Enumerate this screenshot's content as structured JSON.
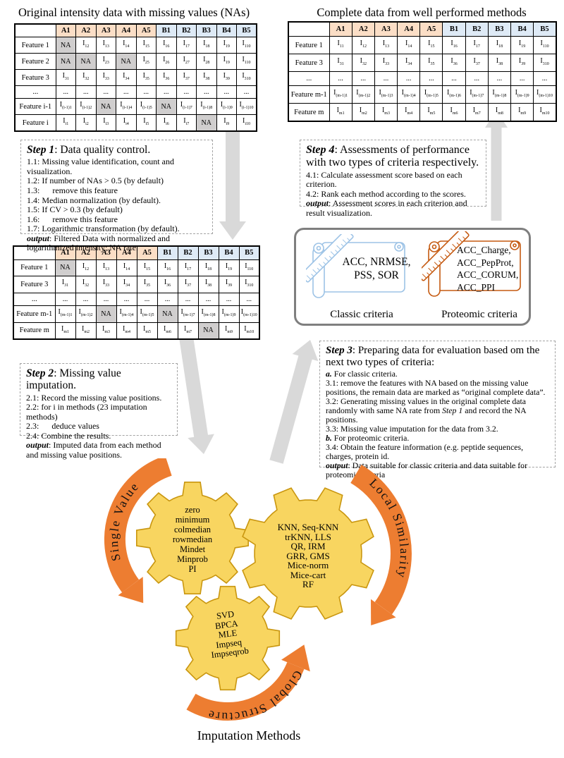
{
  "page": {
    "left_title": "Original intensity data with missing values (NAs)",
    "right_title": "Complete data from well performed methods",
    "caption": "Imputation Methods"
  },
  "tables": {
    "original": {
      "columns": [
        "A1",
        "A2",
        "A3",
        "A4",
        "A5",
        "B1",
        "B2",
        "B3",
        "B4",
        "B5"
      ],
      "rows": [
        {
          "label": "Feature 1",
          "cells": [
            "NA",
            "I12",
            "I13",
            "I14",
            "I15",
            "I16",
            "I17",
            "I18",
            "I19",
            "I110"
          ]
        },
        {
          "label": "Feature 2",
          "cells": [
            "NA",
            "NA",
            "I23",
            "NA",
            "I25",
            "I26",
            "I27",
            "I28",
            "I19",
            "I110"
          ]
        },
        {
          "label": "Feature 3",
          "cells": [
            "I31",
            "I32",
            "I33",
            "I34",
            "I35",
            "I36",
            "I37",
            "I38",
            "I39",
            "I310"
          ]
        },
        {
          "label": "...",
          "cells": [
            "...",
            "...",
            "...",
            "...",
            "...",
            "...",
            "...",
            "...",
            "...",
            "..."
          ]
        },
        {
          "label": "Feature i-1",
          "cells": [
            "I(i-1)1",
            "I(i-1)2",
            "NA",
            "I(i-1)4",
            "I(i-1)5",
            "NA",
            "I(i-1)7",
            "I(i-1)8",
            "I(i-1)9",
            "I(i-1)10"
          ]
        },
        {
          "label": "Feature i",
          "cells": [
            "Ii1",
            "Ii2",
            "Ii3",
            "Ii4",
            "Ii5",
            "Ii6",
            "Ii7",
            "NA",
            "Ii9",
            "Ii10"
          ]
        }
      ]
    },
    "filtered": {
      "columns": [
        "A1",
        "A2",
        "A3",
        "A4",
        "A5",
        "B1",
        "B2",
        "B3",
        "B4",
        "B5"
      ],
      "rows": [
        {
          "label": "Feature 1",
          "cells": [
            "NA",
            "I12",
            "I13",
            "I14",
            "I15",
            "I16",
            "I17",
            "I18",
            "I19",
            "I110"
          ]
        },
        {
          "label": "Feature 3",
          "cells": [
            "I31",
            "I32",
            "I33",
            "I34",
            "I35",
            "I36",
            "I37",
            "I38",
            "I39",
            "I310"
          ]
        },
        {
          "label": "...",
          "cells": [
            "...",
            "...",
            "...",
            "...",
            "...",
            "...",
            "...",
            "...",
            "...",
            "..."
          ]
        },
        {
          "label": "Feature m-1",
          "cells": [
            "I(m-1)1",
            "I(m-1)2",
            "NA",
            "I(m-1)4",
            "I(m-1)5",
            "NA",
            "I(m-1)7",
            "I(m-1)8",
            "I(m-1)9",
            "I(m-1)10"
          ]
        },
        {
          "label": "Feature m",
          "cells": [
            "Im1",
            "Im2",
            "Im3",
            "Im4",
            "Im5",
            "Im6",
            "Im7",
            "NA",
            "Im9",
            "Im10"
          ]
        }
      ]
    },
    "complete": {
      "columns": [
        "A1",
        "A2",
        "A3",
        "A4",
        "A5",
        "B1",
        "B2",
        "B3",
        "B4",
        "B5"
      ],
      "rows": [
        {
          "label": "Feature 1",
          "cells": [
            "I11",
            "I12",
            "I13",
            "I14",
            "I15",
            "I16",
            "I17",
            "I18",
            "I19",
            "I110"
          ]
        },
        {
          "label": "Feature 3",
          "cells": [
            "I31",
            "I32",
            "I33",
            "I34",
            "I35",
            "I36",
            "I37",
            "I38",
            "I39",
            "I310"
          ]
        },
        {
          "label": "...",
          "cells": [
            "...",
            "...",
            "...",
            "...",
            "...",
            "...",
            "...",
            "...",
            "...",
            "..."
          ]
        },
        {
          "label": "Feature m-1",
          "cells": [
            "I(m-1)1",
            "I(m-1)2",
            "I(m-1)3",
            "I(m-1)4",
            "I(m-1)5",
            "I(m-1)6",
            "I(m-1)7",
            "I(m-1)8",
            "I(m-1)9",
            "I(m-1)10"
          ]
        },
        {
          "label": "Feature m",
          "cells": [
            "Im1",
            "Im2",
            "Im3",
            "Im4",
            "Im5",
            "Im6",
            "Im7",
            "Im8",
            "Im9",
            "Im10"
          ]
        }
      ]
    }
  },
  "steps": {
    "step1": {
      "lines": [
        {
          "h": true,
          "segs": [
            {
              "s": "bi",
              "t": "Step 1"
            },
            {
              "t": ": Data quality control."
            }
          ]
        },
        {
          "segs": [
            {
              "t": "1.1: Missing value identification, count and visualization."
            }
          ]
        },
        {
          "segs": [
            {
              "t": "1.2: If number of NAs > 0.5 (by default)"
            }
          ]
        },
        {
          "segs": [
            {
              "t": "1.3:      remove this feature"
            }
          ]
        },
        {
          "segs": [
            {
              "t": "1.4: Median normalization (by default)."
            }
          ]
        },
        {
          "segs": [
            {
              "t": "1.5: If CV > 0.3 (by default)"
            }
          ]
        },
        {
          "segs": [
            {
              "t": "1.6:      remove this feature"
            }
          ]
        },
        {
          "segs": [
            {
              "t": "1.7: Logarithmic transformation (by default)."
            }
          ]
        },
        {
          "segs": [
            {
              "s": "bi",
              "t": "output"
            },
            {
              "t": ": Filtered Data with normalized and logarithmized intensity; NA rate."
            }
          ]
        }
      ]
    },
    "step2": {
      "lines": [
        {
          "h": true,
          "segs": [
            {
              "s": "bi",
              "t": "Step 2"
            },
            {
              "t": ": Missing value imputation."
            }
          ]
        },
        {
          "segs": [
            {
              "t": "2.1: Record the missing value positions."
            }
          ]
        },
        {
          "segs": [
            {
              "t": "2.2: for i in methods (23 imputation methods)"
            }
          ]
        },
        {
          "segs": [
            {
              "t": "2.3:      deduce values"
            }
          ]
        },
        {
          "segs": [
            {
              "t": "2.4: Combine the results."
            }
          ]
        },
        {
          "segs": [
            {
              "s": "bi",
              "t": "output"
            },
            {
              "t": ": Imputed data from each method and missing value positions."
            }
          ]
        }
      ]
    },
    "step3": {
      "lines": [
        {
          "h": true,
          "segs": [
            {
              "s": "bi",
              "t": "Step 3"
            },
            {
              "t": ": Preparing data for evaluation based om the next two types of criteria:"
            }
          ]
        },
        {
          "segs": [
            {
              "s": "bi",
              "t": "a."
            },
            {
              "t": " For classic criteria."
            }
          ]
        },
        {
          "segs": [
            {
              "t": "3.1: remove the features with NA based on the missing value positions, the remain data are marked as “original complete data”."
            }
          ]
        },
        {
          "segs": [
            {
              "t": "3.2: Generating missing values in the original complete data randomly with same NA rate from "
            },
            {
              "s": "it",
              "t": "Step 1"
            },
            {
              "t": " and record the NA positions."
            }
          ]
        },
        {
          "segs": [
            {
              "t": "3.3: Missing value imputation for the data from 3.2."
            }
          ]
        },
        {
          "segs": [
            {
              "s": "bi",
              "t": "b."
            },
            {
              "t": " For proteomic criteria."
            }
          ]
        },
        {
          "segs": [
            {
              "t": "3.4: Obtain the feature information (e.g. peptide sequences, charges, protein id."
            }
          ]
        },
        {
          "segs": [
            {
              "s": "bi",
              "t": "output"
            },
            {
              "t": ": Data suitable for classic criteria and data suitable for proteomic criteria"
            }
          ]
        }
      ]
    },
    "step4": {
      "lines": [
        {
          "h": true,
          "segs": [
            {
              "s": "bi",
              "t": "Step 4"
            },
            {
              "t": ": Assessments of performance with two types of criteria respectively."
            }
          ]
        },
        {
          "segs": [
            {
              "t": "4.1: Calculate assessment score based on each criterion."
            }
          ]
        },
        {
          "segs": [
            {
              "t": "4.2: Rank each method according to the scores."
            }
          ]
        },
        {
          "segs": [
            {
              "s": "bi",
              "t": "output"
            },
            {
              "t": ": Assessment scores in each criterion and result visualization."
            }
          ]
        }
      ]
    }
  },
  "criteria": {
    "classic_text": "ACC, NRMSE, PSS, SOR",
    "classic_label": "Classic criteria",
    "proteomic_text": "ACC_Charge, ACC_PepProt, ACC_CORUM, ACC_PPI",
    "proteomic_label": "Proteomic criteria"
  },
  "gear_section": {
    "arrows": {
      "single": "Single Value",
      "local": "Local Similarity",
      "global": "Global Structure"
    },
    "gears": {
      "single": [
        "zero",
        "minimum",
        "colmedian",
        "rowmedian",
        "Mindet",
        "Minprob",
        "PI"
      ],
      "local": [
        "KNN, Seq-KNN",
        "trKNN, LLS",
        "QR, IRM",
        "GRR, GMS",
        "Mice-norm",
        "Mice-cart",
        "RF"
      ],
      "global": [
        "SVD",
        "BPCA",
        "MLE",
        "Impseq",
        "Impseqrob"
      ]
    }
  },
  "colors": {
    "header_a_peach": "#FBDEC6",
    "header_b_blue": "#DEEAF6",
    "na_gray": "#D0CECE",
    "flow_arrow_gray": "#D9D9D9",
    "ribbon_orange": "#ED7D31",
    "gear_fill": "#F8D560",
    "gear_stroke": "#C9960F",
    "classic_blue": "#9DC3E6",
    "proteomic_orange": "#C55A11",
    "criteria_border_gray": "#7F7F7F"
  }
}
